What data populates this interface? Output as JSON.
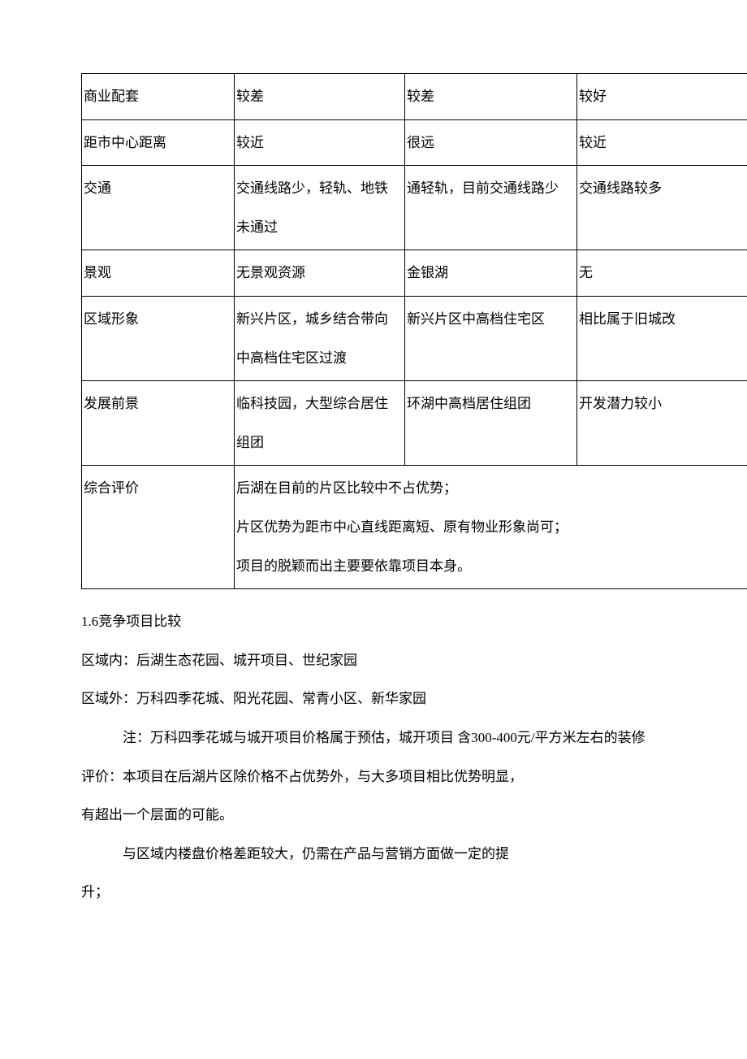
{
  "table": {
    "rows": [
      {
        "c1": "商业配套",
        "c2": "较差",
        "c3": "较差",
        "c4": "较好"
      },
      {
        "c1": "距市中心距离",
        "c2": "较近",
        "c3": "很远",
        "c4": "较近"
      },
      {
        "c1": "交通",
        "c2": "交通线路少，轻轨、地铁未通过",
        "c3": "通轻轨，目前交通线路少",
        "c4": "交通线路较多"
      },
      {
        "c1": "景观",
        "c2": "无景观资源",
        "c3": "金银湖",
        "c4": "无"
      },
      {
        "c1": "区域形象",
        "c2": " 新兴片区，城乡结合带向中高档住宅区过渡",
        "c3": "新兴片区中高档住宅区",
        "c4": "相比属于旧城改"
      },
      {
        "c1": "发展前景",
        "c2": "临科技园，大型综合居住组团",
        "c3": "环湖中高档居住组团",
        "c4": "开发潜力较小"
      }
    ],
    "summary": {
      "label": "综合评价",
      "line1": "后湖在目前的片区比较中不占优势；",
      "line2": "片区优势为距市中心直线距离短、原有物业形象尚可；",
      "line3": "项目的脱颖而出主要要依靠项目本身。"
    }
  },
  "body": {
    "section_title": "1.6竞争项目比较",
    "p1": "区域内：后湖生态花园、城开项目、世纪家园",
    "p2": "区域外：万科四季花城、阳光花园、常青小区、新华家园",
    "p3": "注：万科四季花城与城开项目价格属于预估，城开项目 含300-400元/平方米左右的装修",
    "p4a": "评价：本项目在后湖片区除价格不占优势外，与大多项目相比优势明显，",
    "p4b": "有超出一个层面的可能。",
    "p5a": "与区域内楼盘价格差距较大，仍需在产品与营销方面做一定的提",
    "p5b": "升；"
  }
}
